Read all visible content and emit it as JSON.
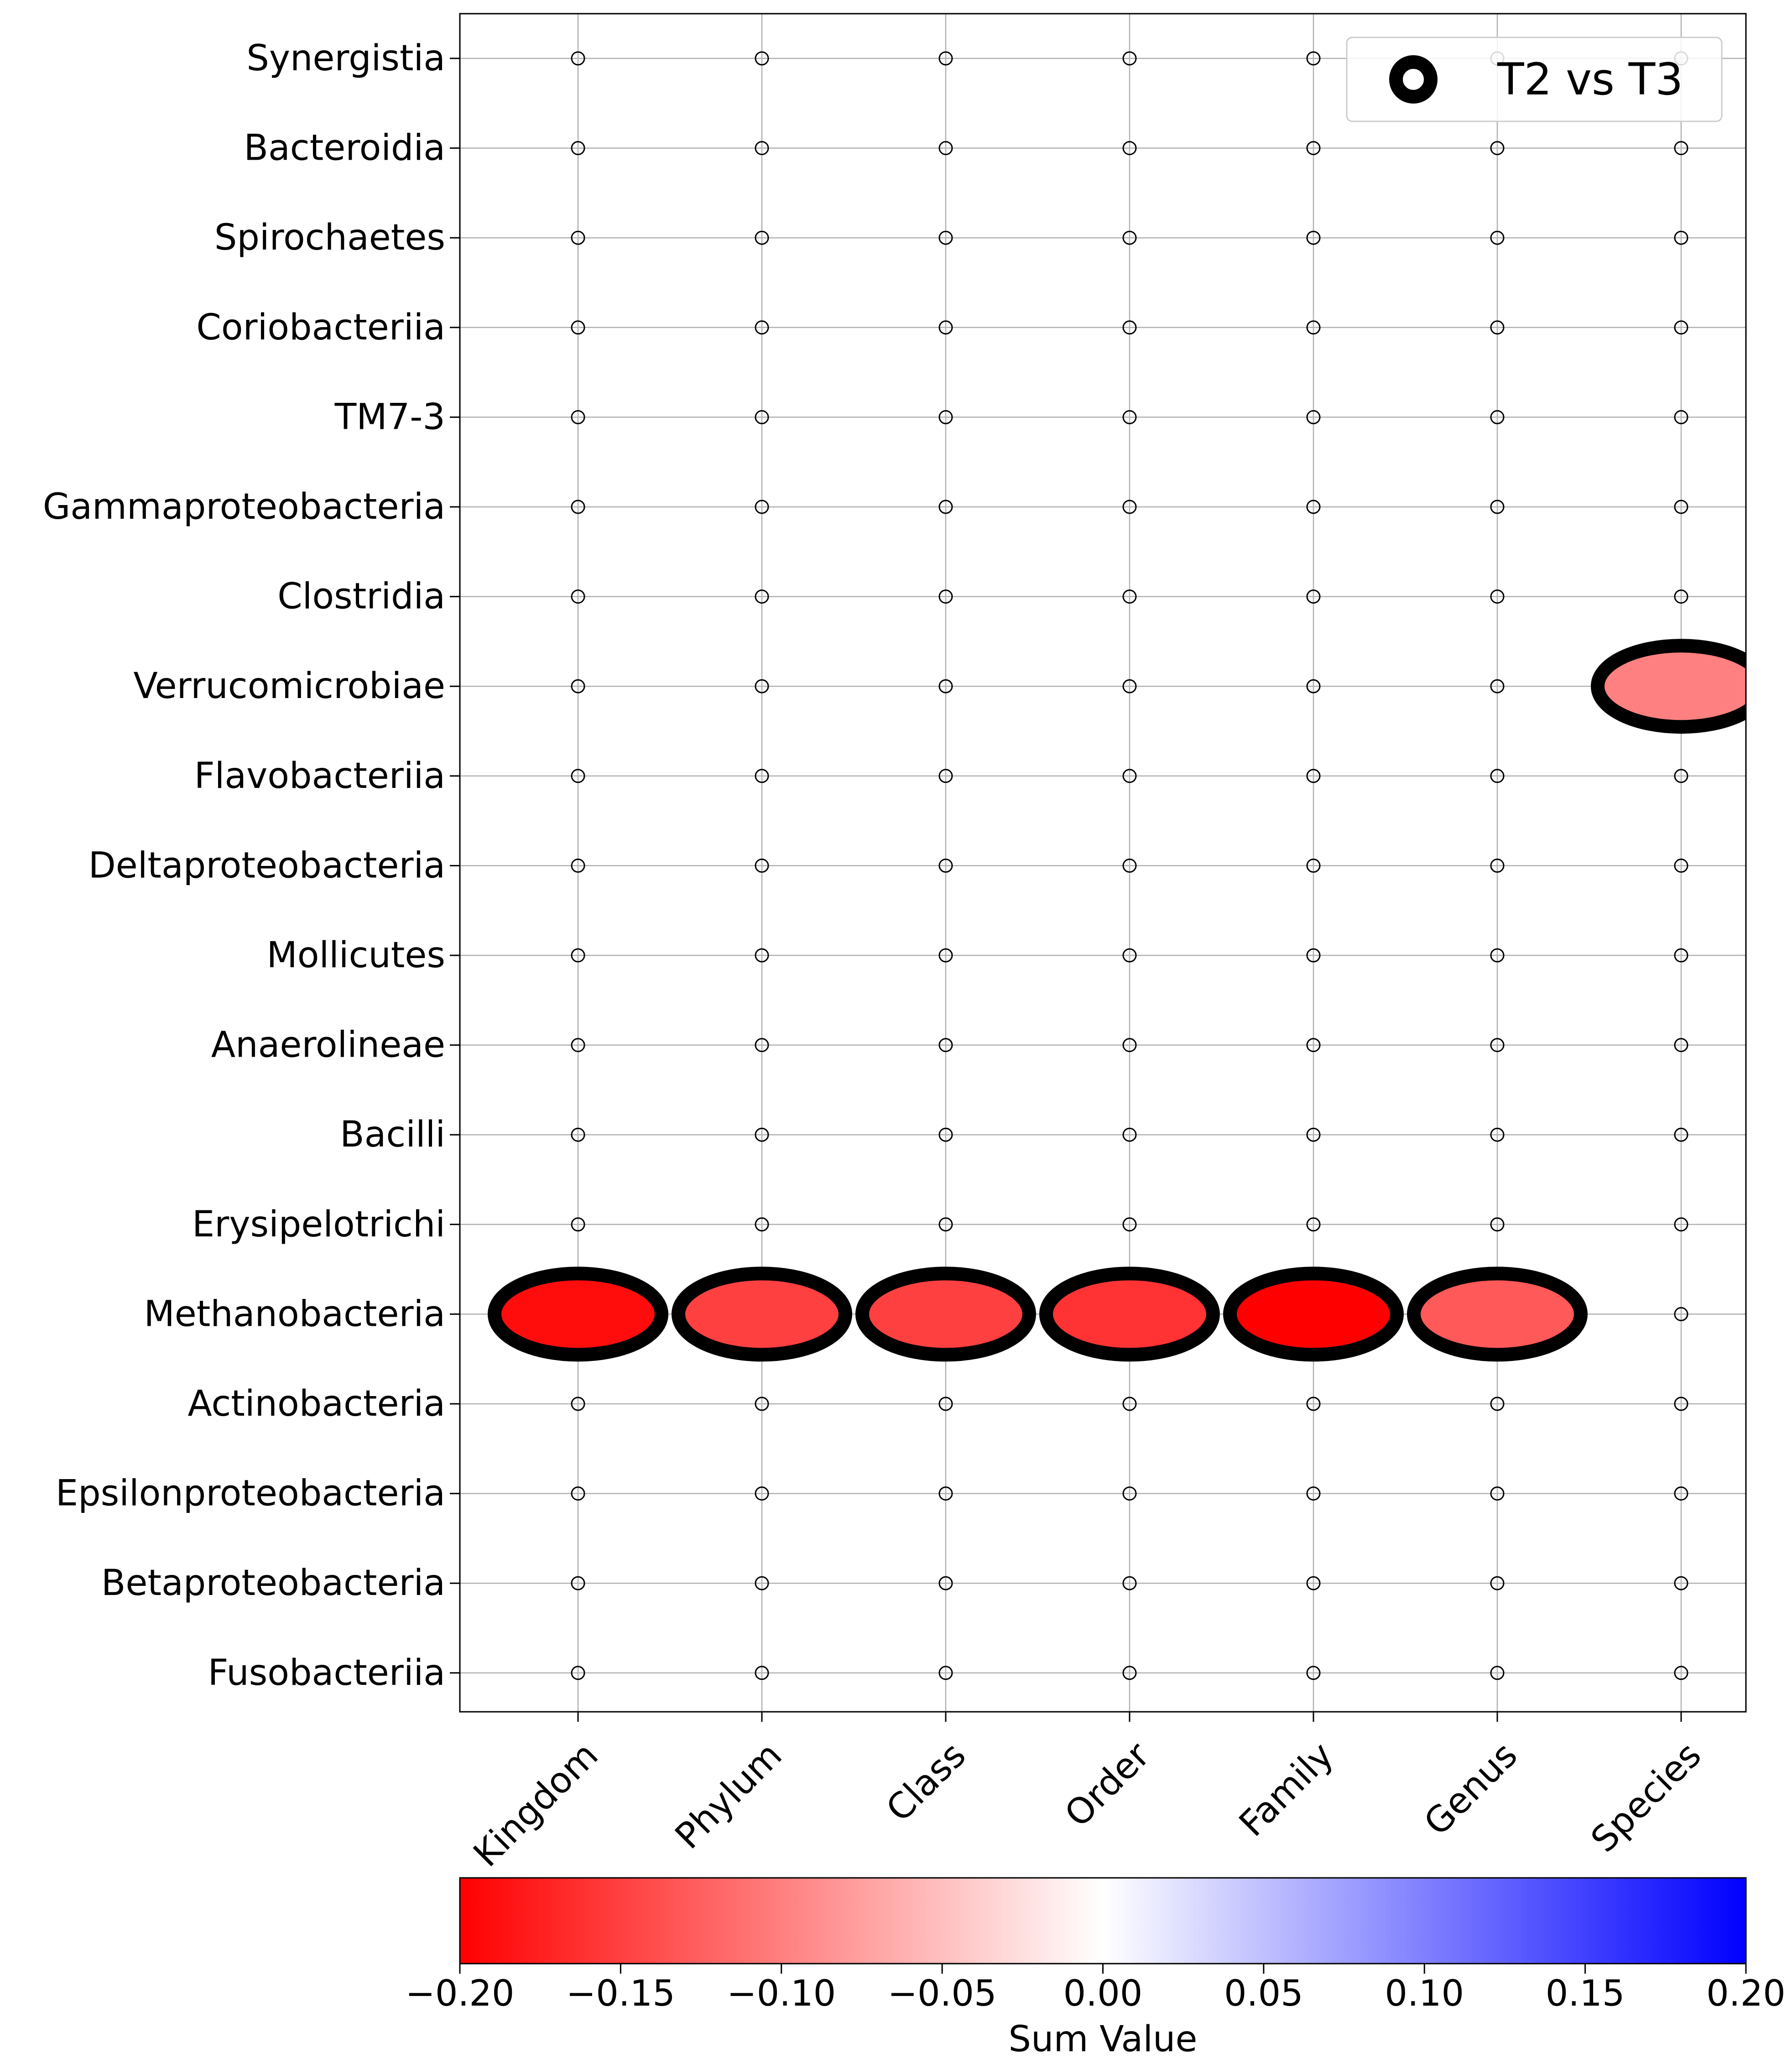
{
  "chart_data": {
    "type": "scatter",
    "title": "",
    "xlabel": "",
    "ylabel": "",
    "categories_x": [
      "Kingdom",
      "Phylum",
      "Class",
      "Order",
      "Family",
      "Genus",
      "Species"
    ],
    "categories_y": [
      "Synergistia",
      "Bacteroidia",
      "Spirochaetes",
      "Coriobacteriia",
      "TM7-3",
      "Gammaproteobacteria",
      "Clostridia",
      "Verrucomicrobiae",
      "Flavobacteriia",
      "Deltaproteobacteria",
      "Mollicutes",
      "Anaerolineae",
      "Bacilli",
      "Erysipelotrichi",
      "Methanobacteria",
      "Actinobacteria",
      "Epsilonproteobacteria",
      "Betaproteobacteria",
      "Fusobacteriia"
    ],
    "series": [
      {
        "name": "T2 vs T3",
        "points": [
          {
            "x": "Kingdom",
            "y": "Methanobacteria",
            "value": -0.19
          },
          {
            "x": "Phylum",
            "y": "Methanobacteria",
            "value": -0.15
          },
          {
            "x": "Class",
            "y": "Methanobacteria",
            "value": -0.15
          },
          {
            "x": "Order",
            "y": "Methanobacteria",
            "value": -0.16
          },
          {
            "x": "Family",
            "y": "Methanobacteria",
            "value": -0.2
          },
          {
            "x": "Genus",
            "y": "Methanobacteria",
            "value": -0.13
          },
          {
            "x": "Species",
            "y": "Verrucomicrobiae",
            "value": -0.1
          }
        ],
        "zero_marker": "small-open-circle"
      }
    ],
    "colorbar": {
      "label": "Sum Value",
      "range": [
        -0.2,
        0.2
      ],
      "ticks": [
        "−0.20",
        "−0.15",
        "−0.10",
        "−0.05",
        "0.00",
        "0.05",
        "0.10",
        "0.15",
        "0.20"
      ],
      "colormap": "bwr_r",
      "low_color": "#ff0000",
      "mid_color": "#ffffff",
      "high_color": "#0000ff"
    },
    "legend": {
      "entries": [
        "T2 vs T3"
      ],
      "placement": "top-right"
    },
    "grid": true
  }
}
